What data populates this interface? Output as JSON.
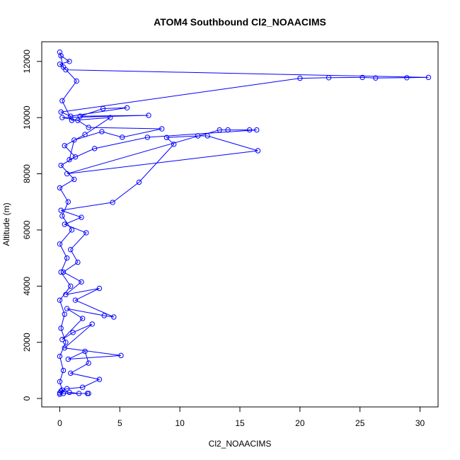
{
  "chart_data": {
    "type": "scatter",
    "title": "ATOM4 Southbound Cl2_NOAACIMS",
    "xlabel": "Cl2_NOAACIMS",
    "ylabel": "Altitude (m)",
    "xlim": [
      -1.5,
      31.5
    ],
    "ylim": [
      -300,
      12700
    ],
    "xticks": [
      0,
      5,
      10,
      15,
      20,
      25,
      30
    ],
    "yticks": [
      0,
      2000,
      4000,
      6000,
      8000,
      10000,
      12000
    ],
    "grid": false,
    "legend": "none",
    "connected": true,
    "marker": "open-circle",
    "series_color": "#0000ff",
    "series": [
      {
        "values": [
          [
            0.0,
            150
          ],
          [
            0.3,
            180
          ],
          [
            2.3,
            180
          ],
          [
            2.4,
            180
          ],
          [
            1.6,
            180
          ],
          [
            0.8,
            220
          ],
          [
            0.1,
            260
          ],
          [
            0.6,
            350
          ],
          [
            1.9,
            400
          ],
          [
            3.3,
            680
          ],
          [
            0.9,
            900
          ],
          [
            2.4,
            1260
          ],
          [
            2.1,
            1680
          ],
          [
            0.7,
            1400
          ],
          [
            5.1,
            1530
          ],
          [
            0.4,
            1800
          ],
          [
            2.7,
            2650
          ],
          [
            1.1,
            2350
          ],
          [
            0.2,
            2100
          ],
          [
            1.9,
            2850
          ],
          [
            0.6,
            3200
          ],
          [
            3.7,
            2950
          ],
          [
            4.5,
            2900
          ],
          [
            1.3,
            3500
          ],
          [
            3.3,
            3920
          ],
          [
            0.5,
            3700
          ],
          [
            1.8,
            4150
          ],
          [
            0.3,
            4500
          ],
          [
            1.5,
            4850
          ],
          [
            0.9,
            5300
          ],
          [
            2.2,
            5900
          ],
          [
            0.4,
            6200
          ],
          [
            1.8,
            6450
          ],
          [
            0.1,
            6700
          ],
          [
            4.4,
            6980
          ],
          [
            6.6,
            7700
          ],
          [
            9.5,
            9050
          ],
          [
            8.9,
            9290
          ],
          [
            11.5,
            9350
          ],
          [
            12.3,
            9350
          ],
          [
            16.5,
            8820
          ],
          [
            0.6,
            8000
          ],
          [
            13.3,
            9560
          ],
          [
            14.0,
            9560
          ],
          [
            15.8,
            9560
          ],
          [
            16.4,
            9560
          ],
          [
            7.3,
            9300
          ],
          [
            2.9,
            8900
          ],
          [
            0.8,
            8500
          ],
          [
            1.2,
            9200
          ],
          [
            3.5,
            9500
          ],
          [
            5.2,
            9300
          ],
          [
            8.5,
            9600
          ],
          [
            2.4,
            9650
          ],
          [
            1.5,
            9900
          ],
          [
            0.2,
            10000
          ],
          [
            7.4,
            10080
          ],
          [
            1.7,
            10050
          ],
          [
            3.6,
            10320
          ],
          [
            5.6,
            10350
          ],
          [
            0.9,
            10050
          ],
          [
            0.1,
            10200
          ],
          [
            20.0,
            11400
          ],
          [
            22.4,
            11420
          ],
          [
            25.2,
            11430
          ],
          [
            26.3,
            11410
          ],
          [
            28.9,
            11420
          ],
          [
            30.7,
            11430
          ],
          [
            0.5,
            11700
          ],
          [
            0.0,
            11900
          ],
          [
            0.8,
            12000
          ],
          [
            0.1,
            12200
          ],
          [
            0.0,
            12330
          ],
          [
            0.3,
            11800
          ],
          [
            1.4,
            11300
          ],
          [
            0.2,
            10600
          ],
          [
            1.0,
            9900
          ],
          [
            4.2,
            10000
          ],
          [
            2.1,
            9400
          ],
          [
            0.4,
            9000
          ],
          [
            1.3,
            8600
          ],
          [
            0.1,
            8300
          ],
          [
            1.2,
            7800
          ],
          [
            0.0,
            7500
          ],
          [
            0.7,
            7000
          ],
          [
            0.2,
            6500
          ],
          [
            1.0,
            6000
          ],
          [
            0.0,
            5500
          ],
          [
            0.6,
            5000
          ],
          [
            0.1,
            4500
          ],
          [
            0.9,
            4000
          ],
          [
            0.0,
            3500
          ],
          [
            0.4,
            3000
          ],
          [
            0.1,
            2500
          ],
          [
            0.5,
            2000
          ],
          [
            0.0,
            1500
          ],
          [
            0.3,
            1000
          ],
          [
            0.0,
            600
          ],
          [
            0.2,
            300
          ],
          [
            0.0,
            200
          ]
        ]
      }
    ]
  }
}
